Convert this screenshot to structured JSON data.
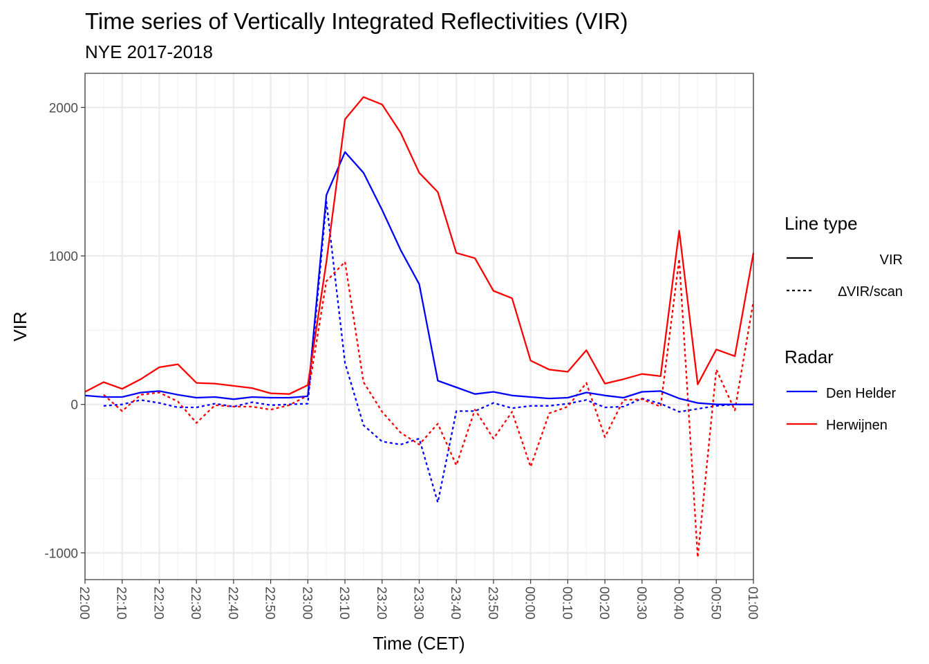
{
  "chart_data": {
    "type": "line",
    "title": "Time series of Vertically Integrated Reflectivities (VIR)",
    "subtitle": "NYE 2017-2018",
    "xlabel": "Time (CET)",
    "ylabel": "VIR",
    "x_ticks": [
      "22:00",
      "22:10",
      "22:20",
      "22:30",
      "22:40",
      "22:50",
      "23:00",
      "23:10",
      "23:20",
      "23:30",
      "23:40",
      "23:50",
      "00:00",
      "00:10",
      "00:20",
      "00:30",
      "00:40",
      "00:50",
      "01:00"
    ],
    "y_ticks": [
      -1000,
      0,
      1000,
      2000
    ],
    "y_tick_labels": [
      "-1000",
      "0",
      "1000",
      "2000"
    ],
    "ylim": [
      -1180,
      2230
    ],
    "xlim_minutes": [
      0,
      180
    ],
    "grid": true,
    "legend": {
      "position": "right",
      "linetype_title": "Line type",
      "linetype_items": [
        {
          "label": "VIR",
          "dash": "solid"
        },
        {
          "label": "∆VIR/scan",
          "dash": "dashed"
        }
      ],
      "color_title": "Radar",
      "color_items": [
        {
          "label": "Den Helder",
          "color": "#0000ff"
        },
        {
          "label": "Herwijnen",
          "color": "#ff0000"
        }
      ]
    },
    "series": [
      {
        "name": "Den Helder",
        "measure": "VIR",
        "color": "#0000ff",
        "dash": "solid",
        "x_minutes": [
          0,
          5,
          10,
          15,
          20,
          25,
          30,
          35,
          40,
          45,
          50,
          55,
          60,
          65,
          70,
          75,
          80,
          85,
          90,
          95,
          100,
          105,
          110,
          115,
          120,
          125,
          130,
          135,
          140,
          145,
          150,
          155,
          160,
          165,
          170,
          175,
          180
        ],
        "values": [
          60,
          50,
          50,
          80,
          90,
          65,
          45,
          50,
          35,
          50,
          45,
          45,
          55,
          1410,
          1700,
          1560,
          1310,
          1040,
          810,
          160,
          115,
          70,
          85,
          60,
          50,
          40,
          45,
          80,
          60,
          45,
          85,
          90,
          40,
          10,
          0,
          0,
          0
        ]
      },
      {
        "name": "Herwijnen",
        "measure": "VIR",
        "color": "#ff0000",
        "dash": "solid",
        "x_minutes": [
          0,
          5,
          10,
          15,
          20,
          25,
          30,
          35,
          40,
          45,
          50,
          55,
          60,
          65,
          70,
          75,
          80,
          85,
          90,
          95,
          100,
          105,
          110,
          115,
          120,
          125,
          130,
          135,
          140,
          145,
          150,
          155,
          160,
          165,
          170,
          175,
          180
        ],
        "values": [
          85,
          150,
          105,
          170,
          250,
          270,
          145,
          140,
          125,
          110,
          75,
          70,
          130,
          960,
          1920,
          2070,
          2020,
          1830,
          1560,
          1430,
          1020,
          985,
          765,
          715,
          295,
          235,
          220,
          365,
          140,
          170,
          205,
          190,
          1170,
          135,
          370,
          325,
          1020
        ]
      },
      {
        "name": "Den Helder",
        "measure": "∆VIR/scan",
        "color": "#0000ff",
        "dash": "dashed",
        "x_minutes": [
          5,
          10,
          15,
          20,
          25,
          30,
          35,
          40,
          45,
          50,
          55,
          60,
          65,
          70,
          75,
          80,
          85,
          90,
          95,
          100,
          105,
          110,
          115,
          120,
          125,
          130,
          135,
          140,
          145,
          150,
          155,
          160,
          165,
          170,
          175,
          180
        ],
        "values": [
          -10,
          0,
          30,
          10,
          -20,
          -20,
          5,
          -15,
          15,
          -5,
          0,
          5,
          1365,
          280,
          -140,
          -250,
          -270,
          -230,
          -660,
          -45,
          -45,
          10,
          -25,
          -10,
          -10,
          5,
          30,
          -20,
          -15,
          40,
          5,
          -50,
          -30,
          -10,
          0,
          0
        ]
      },
      {
        "name": "Herwijnen",
        "measure": "∆VIR/scan",
        "color": "#ff0000",
        "dash": "dashed",
        "x_minutes": [
          5,
          10,
          15,
          20,
          25,
          30,
          35,
          40,
          45,
          50,
          55,
          60,
          65,
          70,
          75,
          80,
          85,
          90,
          95,
          100,
          105,
          110,
          115,
          120,
          125,
          130,
          135,
          140,
          145,
          150,
          155,
          160,
          165,
          170,
          175,
          180
        ],
        "values": [
          65,
          -45,
          65,
          80,
          20,
          -125,
          -5,
          -15,
          -15,
          -35,
          -5,
          60,
          830,
          960,
          150,
          -50,
          -190,
          -270,
          -130,
          -410,
          -35,
          -230,
          -50,
          -420,
          -60,
          -15,
          145,
          -220,
          30,
          35,
          -15,
          980,
          -1030,
          235,
          -40,
          695
        ]
      }
    ]
  }
}
